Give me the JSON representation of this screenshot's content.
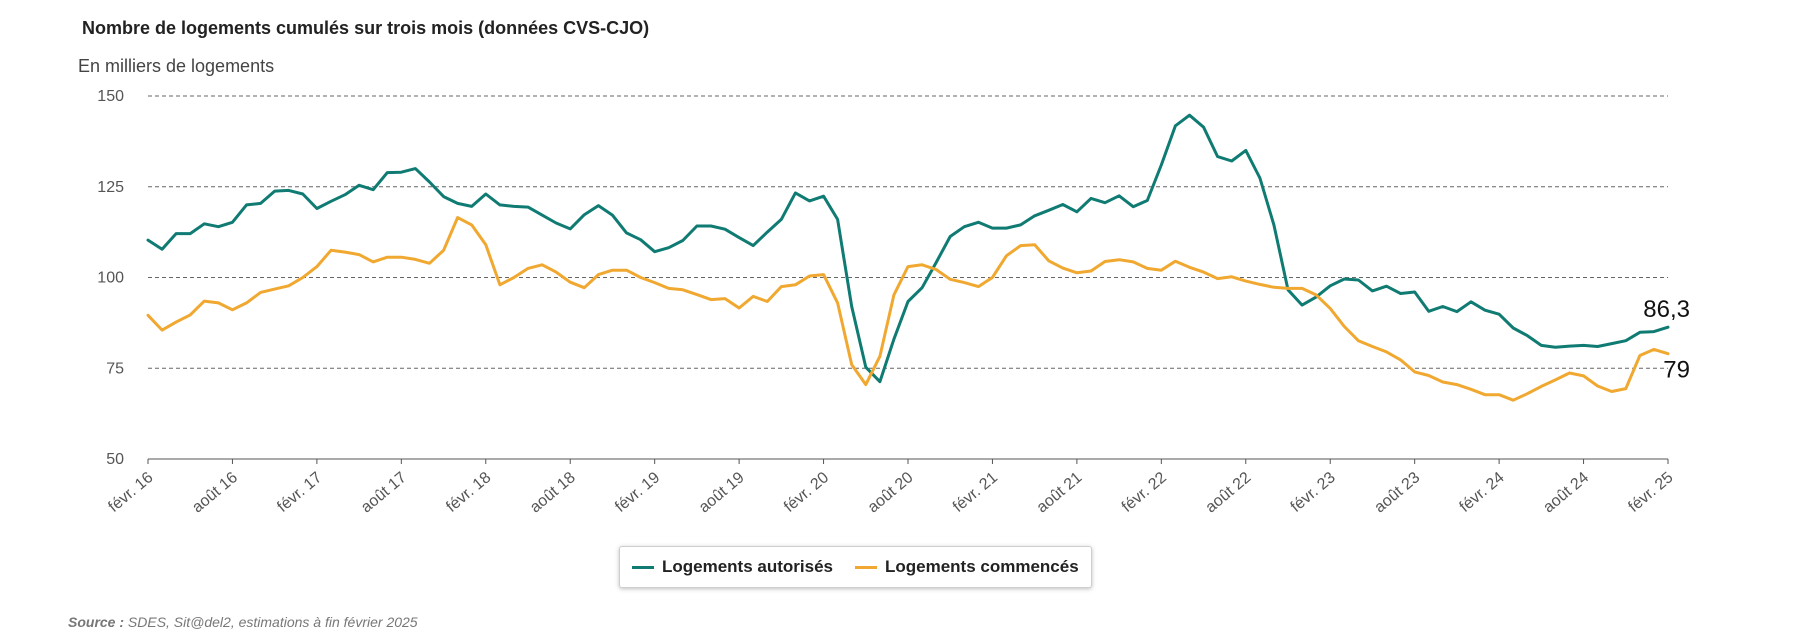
{
  "title": "Nombre de logements cumulés sur trois mois (données CVS-CJO)",
  "unit_label": "En milliers de logements",
  "legend": [
    {
      "label": "Logements autorisés",
      "color": "#0f7b73"
    },
    {
      "label": "Logements commencés",
      "color": "#f0a830"
    }
  ],
  "source_label": "Source :",
  "source_text": " SDES, Sit@del2, estimations à fin février 2025",
  "chart_data": {
    "type": "line",
    "title": "Nombre de logements cumulés sur trois mois (données CVS-CJO)",
    "ylabel": "En milliers de logements",
    "ylim": [
      50,
      150
    ],
    "yticks": [
      "150",
      "125",
      "100",
      "75",
      "50"
    ],
    "ytick_values": [
      150,
      125,
      100,
      75,
      50
    ],
    "xtick_labels": [
      "févr. 16",
      "août 16",
      "févr. 17",
      "août 17",
      "févr. 18",
      "août 18",
      "févr. 19",
      "août 19",
      "févr. 20",
      "août 20",
      "févr. 21",
      "août 21",
      "févr. 22",
      "août 22",
      "févr. 23",
      "août 23",
      "févr. 24",
      "août 24",
      "févr. 25"
    ],
    "start": "2016-02",
    "end": "2025-02",
    "series": [
      {
        "name": "Logements autorisés",
        "color": "#0f7b73",
        "end_label": "86,3",
        "values": [
          110.3,
          107.8,
          112.1,
          112.1,
          114.8,
          114.0,
          115.2,
          120.0,
          120.4,
          123.8,
          124.0,
          123.0,
          119.0,
          121.0,
          122.8,
          125.4,
          124.2,
          128.9,
          129.0,
          130.0,
          126.3,
          122.3,
          120.4,
          119.6,
          123.0,
          120.0,
          119.6,
          119.4,
          117.2,
          115.0,
          113.4,
          117.3,
          119.8,
          117.2,
          112.3,
          110.4,
          107.1,
          108.2,
          110.2,
          114.2,
          114.2,
          113.3,
          111.0,
          108.8,
          112.5,
          116.0,
          123.3,
          121.1,
          122.4,
          116.0,
          92.0,
          75.3,
          71.3,
          83.0,
          93.4,
          97.2,
          104.1,
          111.3,
          114.0,
          115.2,
          113.6,
          113.6,
          114.5,
          117.0,
          118.5,
          120.1,
          118.1,
          121.8,
          120.6,
          122.5,
          119.5,
          121.2,
          131.0,
          141.8,
          144.7,
          141.4,
          133.3,
          132.1,
          135.0,
          127.4,
          114.5,
          96.6,
          92.4,
          94.6,
          97.7,
          99.6,
          99.3,
          96.3,
          97.6,
          95.6,
          96.0,
          90.7,
          92.0,
          90.6,
          93.3,
          91.0,
          89.9,
          86.1,
          84.0,
          81.3,
          80.8,
          81.1,
          81.3,
          81.0,
          81.8,
          82.6,
          84.9,
          85.1,
          86.3
        ]
      },
      {
        "name": "Logements commencés",
        "color": "#f0a830",
        "end_label": "79",
        "values": [
          89.6,
          85.5,
          87.7,
          89.7,
          93.5,
          93.0,
          91.1,
          93.0,
          95.9,
          96.8,
          97.7,
          100.0,
          103.0,
          107.5,
          107.0,
          106.3,
          104.3,
          105.6,
          105.6,
          105.0,
          103.9,
          107.5,
          116.5,
          114.5,
          109.0,
          98.0,
          100.0,
          102.5,
          103.5,
          101.5,
          98.7,
          97.2,
          100.8,
          102.0,
          102.0,
          100.0,
          98.6,
          97.0,
          96.6,
          95.3,
          93.9,
          94.2,
          91.6,
          94.8,
          93.4,
          97.5,
          98.0,
          100.4,
          100.8,
          93.0,
          76.0,
          70.5,
          78.3,
          95.2,
          103.0,
          103.5,
          102.2,
          99.5,
          98.6,
          97.5,
          100.0,
          106.0,
          108.8,
          109.0,
          104.6,
          102.6,
          101.3,
          101.8,
          104.4,
          104.9,
          104.3,
          102.5,
          102.0,
          104.5,
          102.8,
          101.5,
          99.7,
          100.2,
          99.0,
          98.1,
          97.3,
          97.0,
          97.0,
          95.2,
          91.5,
          86.5,
          82.6,
          81.0,
          79.5,
          77.3,
          74.0,
          73.0,
          71.2,
          70.5,
          69.2,
          67.7,
          67.7,
          66.2,
          68.0,
          70.0,
          71.8,
          73.7,
          72.9,
          70.1,
          68.6,
          69.4,
          78.5,
          80.2,
          79.0
        ]
      }
    ]
  }
}
